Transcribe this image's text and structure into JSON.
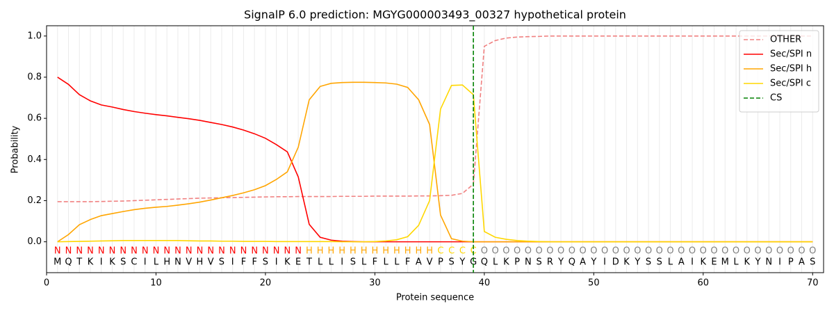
{
  "chart_data": {
    "type": "line",
    "title": "SignalP 6.0 prediction: MGYG000003493_00327 hypothetical protein",
    "xlabel": "Protein sequence",
    "ylabel": "Probability",
    "x": [
      1,
      2,
      3,
      4,
      5,
      6,
      7,
      8,
      9,
      10,
      11,
      12,
      13,
      14,
      15,
      16,
      17,
      18,
      19,
      20,
      21,
      22,
      23,
      24,
      25,
      26,
      27,
      28,
      29,
      30,
      31,
      32,
      33,
      34,
      35,
      36,
      37,
      38,
      39,
      40,
      41,
      42,
      43,
      44,
      45,
      46,
      47,
      48,
      49,
      50,
      51,
      52,
      53,
      54,
      55,
      56,
      57,
      58,
      59,
      60,
      61,
      62,
      63,
      64,
      65,
      66,
      67,
      68,
      69,
      70
    ],
    "residues": [
      "M",
      "Q",
      "T",
      "K",
      "I",
      "K",
      "S",
      "C",
      "I",
      "L",
      "H",
      "N",
      "V",
      "H",
      "V",
      "S",
      "I",
      "F",
      "F",
      "S",
      "I",
      "K",
      "E",
      "T",
      "L",
      "L",
      "I",
      "S",
      "L",
      "F",
      "L",
      "L",
      "F",
      "A",
      "V",
      "P",
      "S",
      "Y",
      "G",
      "Q",
      "L",
      "K",
      "P",
      "N",
      "S",
      "R",
      "Y",
      "Q",
      "A",
      "Y",
      "I",
      "D",
      "K",
      "Y",
      "S",
      "S",
      "L",
      "A",
      "I",
      "K",
      "E",
      "M",
      "L",
      "K",
      "Y",
      "N",
      "I",
      "P",
      "A",
      "S"
    ],
    "region_labels": [
      "N",
      "N",
      "N",
      "N",
      "N",
      "N",
      "N",
      "N",
      "N",
      "N",
      "N",
      "N",
      "N",
      "N",
      "N",
      "N",
      "N",
      "N",
      "N",
      "N",
      "N",
      "N",
      "N",
      "H",
      "H",
      "H",
      "H",
      "H",
      "H",
      "H",
      "H",
      "H",
      "H",
      "H",
      "H",
      "C",
      "C",
      "C",
      "C",
      "O",
      "O",
      "O",
      "O",
      "O",
      "O",
      "O",
      "O",
      "O",
      "O",
      "O",
      "O",
      "O",
      "O",
      "O",
      "O",
      "O",
      "O",
      "O",
      "O",
      "O",
      "O",
      "O",
      "O",
      "O",
      "O",
      "O",
      "O",
      "O",
      "O",
      "O"
    ],
    "region_colors": {
      "N": "#ff0000",
      "H": "#ffa500",
      "C": "#ffd700",
      "O": "#808080"
    },
    "series": [
      {
        "name": "OTHER",
        "color": "#f08080",
        "dash": true,
        "values": [
          0.195,
          0.195,
          0.195,
          0.195,
          0.196,
          0.197,
          0.198,
          0.2,
          0.202,
          0.204,
          0.206,
          0.208,
          0.21,
          0.212,
          0.213,
          0.214,
          0.215,
          0.216,
          0.217,
          0.218,
          0.219,
          0.219,
          0.22,
          0.22,
          0.22,
          0.22,
          0.221,
          0.221,
          0.221,
          0.222,
          0.222,
          0.222,
          0.222,
          0.223,
          0.223,
          0.224,
          0.226,
          0.235,
          0.28,
          0.95,
          0.978,
          0.99,
          0.995,
          0.997,
          0.998,
          1,
          1,
          1,
          1,
          1,
          1,
          1,
          1,
          1,
          1,
          1,
          1,
          1,
          1,
          1,
          1,
          1,
          1,
          1,
          1,
          1,
          1,
          1,
          1,
          1
        ]
      },
      {
        "name": "Sec/SPI n",
        "color": "#ff0000",
        "dash": false,
        "values": [
          0.8,
          0.765,
          0.715,
          0.685,
          0.665,
          0.655,
          0.643,
          0.633,
          0.625,
          0.618,
          0.612,
          0.605,
          0.598,
          0.59,
          0.58,
          0.57,
          0.558,
          0.543,
          0.525,
          0.503,
          0.472,
          0.437,
          0.315,
          0.085,
          0.022,
          0.008,
          0.003,
          0.001,
          0,
          0,
          0,
          0,
          0,
          0,
          0,
          0,
          0,
          0,
          0,
          0,
          0,
          0,
          0,
          0,
          0,
          0,
          0,
          0,
          0,
          0,
          0,
          0,
          0,
          0,
          0,
          0,
          0,
          0,
          0,
          0,
          0,
          0,
          0,
          0,
          0,
          0,
          0,
          0,
          0,
          0
        ]
      },
      {
        "name": "Sec/SPI h",
        "color": "#ffa500",
        "dash": false,
        "values": [
          0,
          0.035,
          0.083,
          0.108,
          0.127,
          0.137,
          0.147,
          0.156,
          0.163,
          0.168,
          0.172,
          0.178,
          0.185,
          0.193,
          0.203,
          0.214,
          0.225,
          0.238,
          0.253,
          0.273,
          0.303,
          0.34,
          0.46,
          0.69,
          0.755,
          0.77,
          0.774,
          0.775,
          0.775,
          0.774,
          0.772,
          0.766,
          0.75,
          0.69,
          0.57,
          0.13,
          0.015,
          0.003,
          0,
          0,
          0,
          0,
          0,
          0,
          0,
          0,
          0,
          0,
          0,
          0,
          0,
          0,
          0,
          0,
          0,
          0,
          0,
          0,
          0,
          0,
          0,
          0,
          0,
          0,
          0,
          0,
          0,
          0,
          0,
          0
        ]
      },
      {
        "name": "Sec/SPI c",
        "color": "#ffd700",
        "dash": false,
        "values": [
          0,
          0.001,
          0.002,
          0.003,
          0.004,
          0.005,
          0.006,
          0.006,
          0.006,
          0.006,
          0.006,
          0.006,
          0.005,
          0.004,
          0.004,
          0.003,
          0.003,
          0.002,
          0.002,
          0.002,
          0.001,
          0.001,
          0.001,
          0.001,
          0.001,
          0.001,
          0,
          0,
          0,
          0.001,
          0.004,
          0.01,
          0.025,
          0.08,
          0.2,
          0.645,
          0.76,
          0.762,
          0.715,
          0.05,
          0.022,
          0.012,
          0.006,
          0.003,
          0.001,
          0,
          0,
          0,
          0,
          0,
          0,
          0,
          0,
          0,
          0,
          0,
          0,
          0,
          0,
          0,
          0,
          0,
          0,
          0,
          0,
          0,
          0,
          0,
          0,
          0
        ]
      }
    ],
    "cs": {
      "name": "CS",
      "x": 39,
      "color": "#008000"
    },
    "xlim": [
      0,
      71
    ],
    "ylim": [
      -0.15,
      1.05
    ],
    "xticks": [
      0,
      10,
      20,
      30,
      40,
      50,
      60,
      70
    ],
    "yticks": [
      {
        "value": 0,
        "label": "0.0"
      },
      {
        "value": 0.2,
        "label": "0.2"
      },
      {
        "value": 0.4,
        "label": "0.4"
      },
      {
        "value": 0.6,
        "label": "0.6"
      },
      {
        "value": 0.8,
        "label": "0.8"
      },
      {
        "value": 1,
        "label": "1.0"
      }
    ],
    "grid": true,
    "legend": "upper right"
  }
}
